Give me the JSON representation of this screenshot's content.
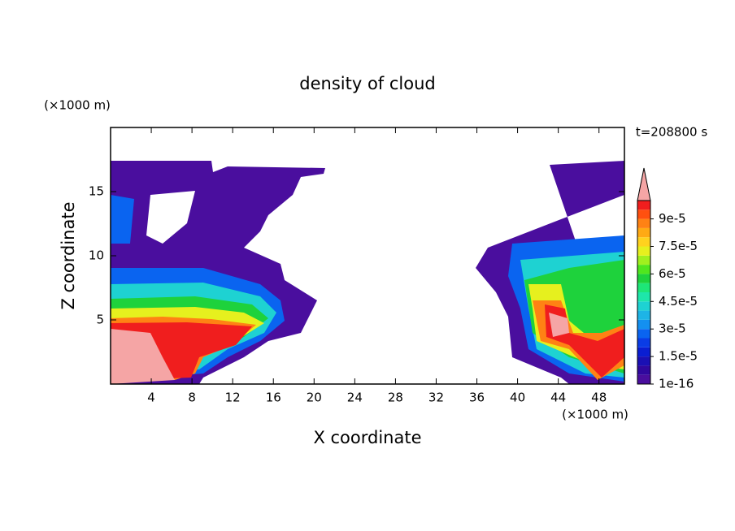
{
  "chart_data": {
    "type": "contour",
    "title": "density of cloud",
    "x_label": "X coordinate",
    "y_label": "Z coordinate",
    "x_unit": "(×1000 m)",
    "y_unit": "(×1000 m)",
    "time_label": "t=208800 s",
    "xlim": [
      0,
      50.5
    ],
    "ylim": [
      0,
      20
    ],
    "xticks": [
      4,
      8,
      12,
      16,
      20,
      24,
      28,
      32,
      36,
      40,
      44,
      48
    ],
    "yticks": [
      5,
      10,
      15
    ],
    "clim": [
      1e-16,
      0.0001
    ],
    "cticks": [
      {
        "value": 1e-16,
        "label": "1e-16"
      },
      {
        "value": 1.5e-05,
        "label": "1.5e-5"
      },
      {
        "value": 3e-05,
        "label": "3e-5"
      },
      {
        "value": 4.5e-05,
        "label": "4.5e-5"
      },
      {
        "value": 6e-05,
        "label": "6e-5"
      },
      {
        "value": 7.5e-05,
        "label": "7.5e-5"
      },
      {
        "value": 9e-05,
        "label": "9e-5"
      }
    ],
    "colors": [
      "#4a0e9e",
      "#30089e",
      "#1a10b4",
      "#0a1ed2",
      "#0a3ce6",
      "#0a64f0",
      "#1490f0",
      "#1eb4e6",
      "#1ed2d2",
      "#1ee6aa",
      "#1ee678",
      "#1ed23c",
      "#50e61e",
      "#a0f01e",
      "#e6f01e",
      "#ffd21e",
      "#ffaa14",
      "#ff8214",
      "#ff500f",
      "#f01e1e"
    ],
    "over_color": "#f5a5a5"
  }
}
